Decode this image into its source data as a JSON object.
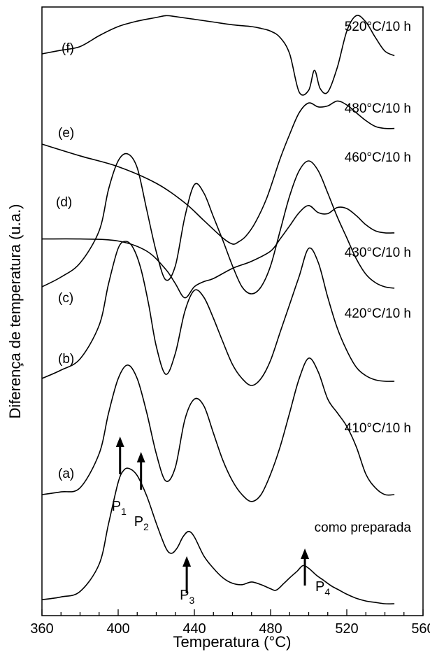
{
  "chart_data": {
    "type": "line",
    "xlabel": "Temperatura (°C)",
    "ylabel": "Diferença de temperatura (u.a.)",
    "xlim": [
      360,
      560
    ],
    "xticks": [
      360,
      400,
      440,
      480,
      520,
      560
    ],
    "y_tick_labels_shown": false,
    "grid": false,
    "legend": "none",
    "series": [
      {
        "letter": "",
        "treatment": "como preparada",
        "x": [
          360,
          370,
          380,
          390,
          395,
          400,
          403,
          406,
          410,
          415,
          420,
          425,
          428,
          431,
          434,
          437,
          440,
          445,
          450,
          455,
          460,
          465,
          470,
          475,
          480,
          483,
          487,
          490,
          494,
          497,
          500,
          504,
          508,
          512,
          516,
          520,
          525,
          530,
          535,
          540,
          545
        ],
        "y": [
          0.04,
          0.06,
          0.1,
          0.3,
          0.6,
          0.9,
          0.99,
          1.0,
          0.95,
          0.8,
          0.6,
          0.42,
          0.38,
          0.42,
          0.5,
          0.54,
          0.5,
          0.36,
          0.27,
          0.2,
          0.16,
          0.15,
          0.17,
          0.15,
          0.12,
          0.11,
          0.16,
          0.2,
          0.25,
          0.29,
          0.27,
          0.22,
          0.18,
          0.14,
          0.11,
          0.08,
          0.05,
          0.03,
          0.02,
          0.01,
          0.01
        ]
      },
      {
        "letter": "(a)",
        "treatment": "410°C/10 h",
        "x": [
          360,
          370,
          380,
          390,
          395,
          400,
          405,
          410,
          415,
          420,
          425,
          430,
          435,
          440,
          445,
          450,
          455,
          460,
          465,
          470,
          475,
          480,
          485,
          490,
          495,
          500,
          505,
          510,
          515,
          520,
          525,
          530,
          535,
          540,
          545
        ],
        "y": [
          0.0,
          0.02,
          0.05,
          0.3,
          0.6,
          0.85,
          0.95,
          0.85,
          0.6,
          0.3,
          0.1,
          0.2,
          0.55,
          0.7,
          0.65,
          0.45,
          0.25,
          0.1,
          0.0,
          -0.05,
          0.0,
          0.15,
          0.35,
          0.6,
          0.85,
          1.0,
          0.9,
          0.7,
          0.6,
          0.5,
          0.35,
          0.15,
          0.05,
          0.0,
          0.0
        ]
      },
      {
        "letter": "(b)",
        "treatment": "420°C/10 h",
        "x": [
          360,
          370,
          380,
          390,
          395,
          400,
          404,
          408,
          412,
          416,
          420,
          425,
          430,
          435,
          440,
          445,
          450,
          455,
          460,
          465,
          470,
          475,
          480,
          485,
          490,
          495,
          500,
          505,
          510,
          515,
          520,
          525,
          530,
          535,
          540,
          545
        ],
        "y": [
          0.02,
          0.08,
          0.16,
          0.4,
          0.7,
          0.95,
          1.0,
          0.95,
          0.8,
          0.55,
          0.25,
          0.05,
          0.2,
          0.5,
          0.65,
          0.6,
          0.45,
          0.28,
          0.12,
          0.02,
          -0.03,
          0.02,
          0.15,
          0.35,
          0.55,
          0.75,
          0.95,
          0.85,
          0.6,
          0.38,
          0.22,
          0.1,
          0.04,
          0.01,
          0.0,
          0.0
        ]
      },
      {
        "letter": "(c)",
        "treatment": "430°C/10 h",
        "x": [
          360,
          370,
          380,
          390,
          395,
          400,
          405,
          410,
          415,
          420,
          425,
          430,
          435,
          440,
          445,
          450,
          455,
          460,
          465,
          470,
          475,
          480,
          485,
          490,
          495,
          500,
          505,
          510,
          515,
          520,
          525,
          530,
          535,
          540,
          545
        ],
        "y": [
          0.05,
          0.12,
          0.22,
          0.45,
          0.75,
          0.95,
          1.0,
          0.9,
          0.6,
          0.3,
          0.1,
          0.2,
          0.55,
          0.78,
          0.72,
          0.55,
          0.38,
          0.2,
          0.05,
          0.0,
          0.05,
          0.2,
          0.45,
          0.7,
          0.88,
          0.95,
          0.88,
          0.72,
          0.55,
          0.4,
          0.25,
          0.14,
          0.08,
          0.05,
          0.04
        ]
      },
      {
        "letter": "(d)",
        "treatment": "460°C/10 h",
        "x": [
          360,
          380,
          400,
          415,
          425,
          430,
          435,
          440,
          445,
          450,
          460,
          470,
          480,
          485,
          490,
          495,
          500,
          505,
          510,
          515,
          520,
          525,
          530,
          535,
          540,
          545
        ],
        "y": [
          0.72,
          0.72,
          0.7,
          0.6,
          0.42,
          0.28,
          0.14,
          0.25,
          0.3,
          0.33,
          0.43,
          0.5,
          0.6,
          0.72,
          0.85,
          0.98,
          1.05,
          0.98,
          0.97,
          1.03,
          1.02,
          0.95,
          0.86,
          0.8,
          0.78,
          0.78
        ]
      },
      {
        "letter": "(e)",
        "treatment": "480°C/10 h",
        "x": [
          360,
          380,
          400,
          420,
          435,
          445,
          455,
          460,
          463,
          467,
          472,
          478,
          485,
          490,
          495,
          500,
          505,
          510,
          515,
          520,
          525,
          530,
          535,
          540,
          545
        ],
        "y": [
          1.0,
          0.88,
          0.77,
          0.6,
          0.4,
          0.22,
          0.04,
          -0.02,
          0.0,
          0.06,
          0.2,
          0.45,
          0.85,
          1.1,
          1.32,
          1.42,
          1.38,
          1.39,
          1.44,
          1.4,
          1.32,
          1.24,
          1.18,
          1.16,
          1.16
        ]
      },
      {
        "letter": "(f)",
        "treatment": "520°C/10 h",
        "x": [
          360,
          370,
          380,
          390,
          400,
          410,
          420,
          425,
          430,
          440,
          450,
          460,
          470,
          475,
          480,
          485,
          490,
          495,
          500,
          503,
          506,
          510,
          515,
          520,
          525,
          530,
          535,
          540,
          545
        ],
        "y": [
          0.6,
          0.64,
          0.68,
          0.8,
          0.9,
          0.96,
          1.0,
          1.02,
          1.01,
          0.98,
          0.95,
          0.92,
          0.9,
          0.88,
          0.85,
          0.78,
          0.6,
          0.18,
          0.2,
          0.42,
          0.22,
          0.18,
          0.45,
          0.85,
          1.02,
          0.95,
          0.78,
          0.63,
          0.58
        ]
      }
    ],
    "annotations": [
      {
        "label": "P",
        "sub": "1",
        "x": 401
      },
      {
        "label": "P",
        "sub": "2",
        "x": 412
      },
      {
        "label": "P",
        "sub": "3",
        "x": 436
      },
      {
        "label": "P",
        "sub": "4",
        "x": 498
      }
    ]
  }
}
